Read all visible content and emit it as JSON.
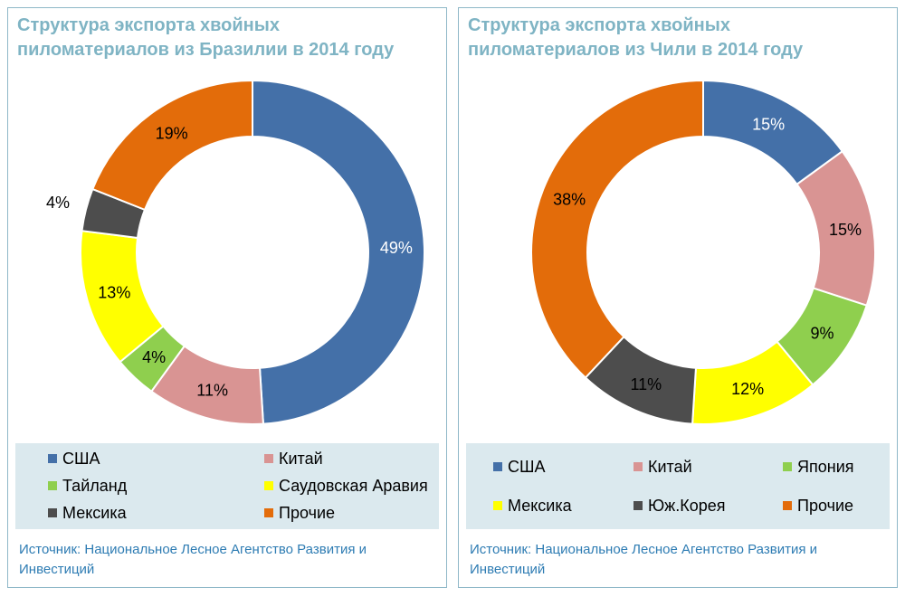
{
  "chart_data": [
    {
      "type": "pie",
      "title": "Структура экспорта хвойных пиломатериалов из Бразилии в 2014 году",
      "categories": [
        "США",
        "Китай",
        "Тайланд",
        "Саудовская Аравия",
        "Мексика",
        "Прочие"
      ],
      "values": [
        49,
        11,
        4,
        13,
        4,
        19
      ],
      "value_labels": [
        "49%",
        "11%",
        "4%",
        "13%",
        "4%",
        "19%"
      ],
      "colors": [
        "#4470a8",
        "#d99493",
        "#8fcf4e",
        "#ffff00",
        "#4d4d4d",
        "#e36c0a"
      ],
      "legend_position": "bottom",
      "source": "Источник: Национальное Лесное Агентство Развития и Инвестиций"
    },
    {
      "type": "pie",
      "title": "Структура экспорта хвойных пиломатериалов из Чили в 2014 году",
      "categories": [
        "США",
        "Китай",
        "Япония",
        "Мексика",
        "Юж.Корея",
        "Прочие"
      ],
      "values": [
        15,
        15,
        9,
        12,
        11,
        38
      ],
      "value_labels": [
        "15%",
        "15%",
        "9%",
        "12%",
        "11%",
        "38%"
      ],
      "colors": [
        "#4470a8",
        "#d99493",
        "#8fcf4e",
        "#ffff00",
        "#4d4d4d",
        "#e36c0a"
      ],
      "legend_position": "bottom",
      "source": "Источник: Национальное Лесное Агентство Развития и Инвестиций"
    }
  ]
}
